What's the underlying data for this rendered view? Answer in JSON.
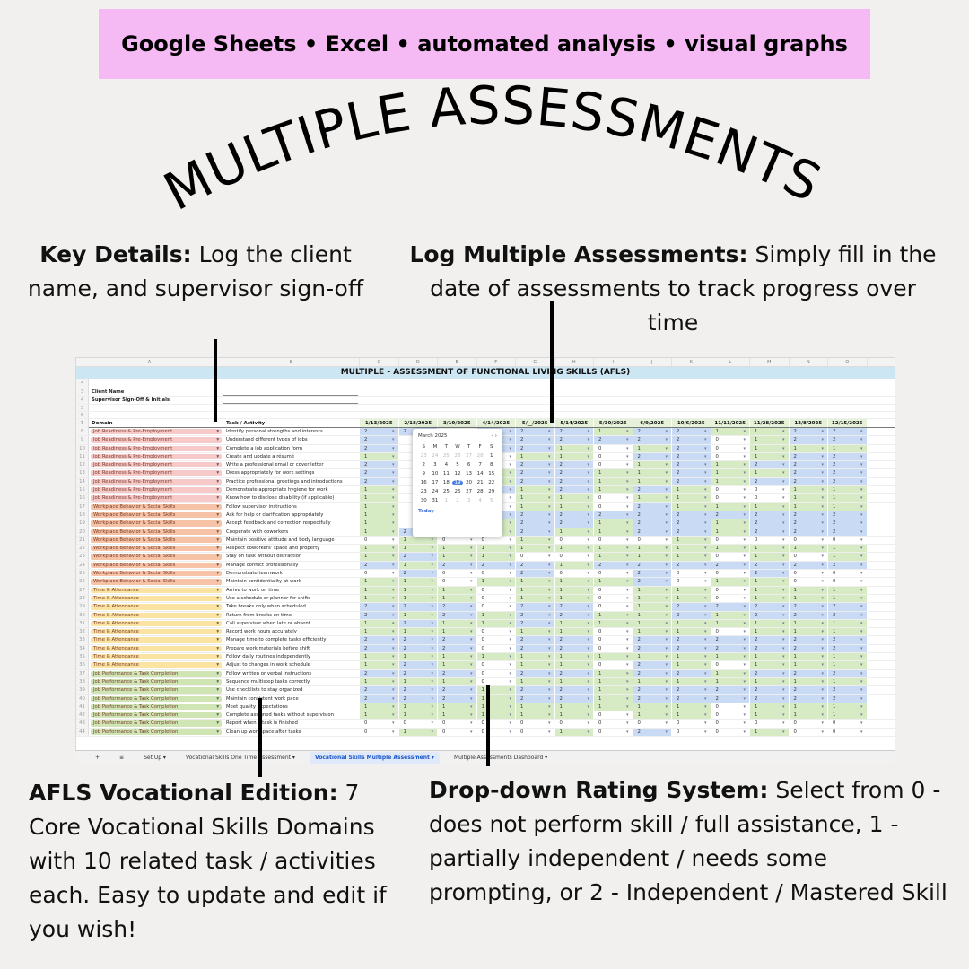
{
  "banner": "Google Sheets • Excel • automated analysis • visual graphs",
  "headline": "MULTIPLE ASSESSMENTS",
  "notes": {
    "key_details_title": "Key Details:",
    "key_details_text": " Log the client name, and supervisor sign-off",
    "log_title": "Log Multiple Assessments:",
    "log_text": " Simply fill in the date of assessments to track progress over time",
    "afls_title": "AFLS Vocational Edition:",
    "afls_text": " 7 Core Vocational Skills Domains with 10 related task / activities each. Easy to update and edit if you wish!",
    "dropdown_title": "Drop-down Rating System:",
    "dropdown_text": " Select from 0 - does not perform skill / full assistance, 1 - partially independent / needs some prompting, or 2 - Independent / Mastered Skill"
  },
  "sheet": {
    "columns": [
      "A",
      "B",
      "C",
      "D",
      "E",
      "F",
      "G",
      "H",
      "I",
      "J",
      "K",
      "L",
      "M",
      "N",
      "O"
    ],
    "title": "MULTIPLE - ASSESSMENT OF FUNCTIONAL LIVING SKILLS (AFLS)",
    "client_name_label": "Client Name",
    "signoff_label": "Supervisor Sign-Off & Initials",
    "header_domain": "Domain",
    "header_task": "Task / Activity",
    "dates": [
      "1/13/2025",
      "2/18/2025",
      "3/19/2025",
      "4/14/2025",
      "5/__/2025",
      "5/14/2025",
      "5/30/2025",
      "6/9/2025",
      "10/6/2025",
      "11/11/2025",
      "11/28/2025",
      "12/8/2025",
      "12/15/2025"
    ],
    "rows": [
      {
        "n": "8",
        "d": "Job Readiness & Pre-Employment",
        "t": "Identify personal strengths and interests",
        "v": [
          "2",
          "2",
          "",
          "2",
          "2",
          "2",
          "1",
          "2",
          "2",
          "1",
          "1",
          "2",
          "2"
        ]
      },
      {
        "n": "9",
        "d": "Job Readiness & Pre-Employment",
        "t": "Understand different types of jobs",
        "v": [
          "2",
          "",
          "",
          "2",
          "2",
          "2",
          "2",
          "2",
          "2",
          "0",
          "1",
          "2",
          "2"
        ]
      },
      {
        "n": "10",
        "d": "Job Readiness & Pre-Employment",
        "t": "Complete a job application form",
        "v": [
          "2",
          "",
          "",
          "2",
          "2",
          "1",
          "0",
          "1",
          "2",
          "0",
          "1",
          "1",
          "1"
        ]
      },
      {
        "n": "11",
        "d": "Job Readiness & Pre-Employment",
        "t": "Create and update a résumé",
        "v": [
          "1",
          "",
          "",
          "0",
          "1",
          "1",
          "0",
          "2",
          "2",
          "0",
          "1",
          "2",
          "2"
        ]
      },
      {
        "n": "12",
        "d": "Job Readiness & Pre-Employment",
        "t": "Write a professional email or cover letter",
        "v": [
          "2",
          "",
          "",
          "0",
          "2",
          "2",
          "0",
          "1",
          "2",
          "1",
          "2",
          "2",
          "2"
        ]
      },
      {
        "n": "13",
        "d": "Job Readiness & Pre-Employment",
        "t": "Dress appropriately for work settings",
        "v": [
          "2",
          "",
          "",
          "1",
          "2",
          "2",
          "1",
          "1",
          "2",
          "1",
          "1",
          "2",
          "2"
        ]
      },
      {
        "n": "14",
        "d": "Job Readiness & Pre-Employment",
        "t": "Practice professional greetings and introductions",
        "v": [
          "2",
          "",
          "",
          "1",
          "2",
          "2",
          "1",
          "1",
          "2",
          "1",
          "2",
          "2",
          "2"
        ]
      },
      {
        "n": "15",
        "d": "Job Readiness & Pre-Employment",
        "t": "Demonstrate appropriate hygiene for work",
        "v": [
          "1",
          "",
          "",
          "2",
          "1",
          "2",
          "1",
          "2",
          "1",
          "0",
          "0",
          "1",
          "1"
        ]
      },
      {
        "n": "16",
        "d": "Job Readiness & Pre-Employment",
        "t": "Know how to disclose disability (if applicable)",
        "v": [
          "1",
          "",
          "",
          "0",
          "1",
          "1",
          "0",
          "1",
          "1",
          "0",
          "0",
          "1",
          "1"
        ]
      },
      {
        "n": "17",
        "d": "Workplace Behavior & Social Skills",
        "t": "Follow supervisor instructions",
        "v": [
          "1",
          "",
          "",
          "0",
          "1",
          "1",
          "0",
          "2",
          "1",
          "1",
          "1",
          "1",
          "1"
        ]
      },
      {
        "n": "18",
        "d": "Workplace Behavior & Social Skills",
        "t": "Ask for help or clarification appropriately",
        "v": [
          "1",
          "",
          "",
          "2",
          "2",
          "2",
          "2",
          "2",
          "2",
          "2",
          "2",
          "2",
          "2"
        ]
      },
      {
        "n": "19",
        "d": "Workplace Behavior & Social Skills",
        "t": "Accept feedback and correction respectfully",
        "v": [
          "1",
          "",
          "",
          "1",
          "2",
          "2",
          "1",
          "2",
          "2",
          "1",
          "2",
          "2",
          "2"
        ]
      },
      {
        "n": "20",
        "d": "Workplace Behavior & Social Skills",
        "t": "Cooperate with coworkers",
        "v": [
          "1",
          "2",
          "1",
          "1",
          "2",
          "1",
          "1",
          "2",
          "2",
          "1",
          "2",
          "2",
          "2"
        ]
      },
      {
        "n": "21",
        "d": "Workplace Behavior & Social Skills",
        "t": "Maintain positive attitude and body language",
        "v": [
          "0",
          "1",
          "0",
          "0",
          "1",
          "0",
          "0",
          "0",
          "1",
          "0",
          "0",
          "0",
          "0"
        ]
      },
      {
        "n": "22",
        "d": "Workplace Behavior & Social Skills",
        "t": "Respect coworkers' space and property",
        "v": [
          "1",
          "1",
          "1",
          "1",
          "1",
          "1",
          "1",
          "1",
          "1",
          "1",
          "1",
          "1",
          "1"
        ]
      },
      {
        "n": "23",
        "d": "Workplace Behavior & Social Skills",
        "t": "Stay on task without distraction",
        "v": [
          "1",
          "2",
          "1",
          "1",
          "0",
          "0",
          "1",
          "1",
          "1",
          "0",
          "1",
          "0",
          "1"
        ]
      },
      {
        "n": "24",
        "d": "Workplace Behavior & Social Skills",
        "t": "Manage conflict professionally",
        "v": [
          "2",
          "1",
          "2",
          "2",
          "2",
          "1",
          "2",
          "2",
          "2",
          "2",
          "2",
          "2",
          "2"
        ]
      },
      {
        "n": "25",
        "d": "Workplace Behavior & Social Skills",
        "t": "Demonstrate teamwork",
        "v": [
          "0",
          "2",
          "0",
          "0",
          "2",
          "0",
          "0",
          "2",
          "0",
          "0",
          "2",
          "0",
          "0"
        ]
      },
      {
        "n": "26",
        "d": "Workplace Behavior & Social Skills",
        "t": "Maintain confidentiality at work",
        "v": [
          "1",
          "1",
          "0",
          "1",
          "1",
          "1",
          "1",
          "2",
          "0",
          "1",
          "1",
          "0",
          "0"
        ]
      },
      {
        "n": "27",
        "d": "Time & Attendance",
        "t": "Arrive to work on time",
        "v": [
          "1",
          "1",
          "1",
          "0",
          "1",
          "1",
          "0",
          "1",
          "1",
          "0",
          "1",
          "1",
          "1"
        ]
      },
      {
        "n": "28",
        "d": "Time & Attendance",
        "t": "Use a schedule or planner for shifts",
        "v": [
          "1",
          "1",
          "1",
          "0",
          "1",
          "1",
          "0",
          "1",
          "1",
          "0",
          "1",
          "1",
          "1"
        ]
      },
      {
        "n": "29",
        "d": "Time & Attendance",
        "t": "Take breaks only when scheduled",
        "v": [
          "2",
          "2",
          "2",
          "0",
          "2",
          "2",
          "0",
          "1",
          "2",
          "2",
          "2",
          "2",
          "2"
        ]
      },
      {
        "n": "30",
        "d": "Time & Attendance",
        "t": "Return from breaks on time",
        "v": [
          "2",
          "1",
          "2",
          "1",
          "2",
          "2",
          "1",
          "1",
          "2",
          "1",
          "2",
          "2",
          "2"
        ]
      },
      {
        "n": "31",
        "d": "Time & Attendance",
        "t": "Call supervisor when late or absent",
        "v": [
          "1",
          "2",
          "1",
          "1",
          "2",
          "1",
          "1",
          "1",
          "1",
          "1",
          "1",
          "1",
          "1"
        ]
      },
      {
        "n": "32",
        "d": "Time & Attendance",
        "t": "Record work hours accurately",
        "v": [
          "1",
          "1",
          "1",
          "0",
          "1",
          "1",
          "0",
          "1",
          "1",
          "0",
          "1",
          "1",
          "1"
        ]
      },
      {
        "n": "33",
        "d": "Time & Attendance",
        "t": "Manage time to complete tasks efficiently",
        "v": [
          "2",
          "2",
          "2",
          "0",
          "2",
          "2",
          "0",
          "2",
          "2",
          "2",
          "2",
          "2",
          "2"
        ]
      },
      {
        "n": "34",
        "d": "Time & Attendance",
        "t": "Prepare work materials before shift",
        "v": [
          "2",
          "2",
          "2",
          "0",
          "2",
          "2",
          "0",
          "2",
          "2",
          "2",
          "2",
          "2",
          "2"
        ]
      },
      {
        "n": "35",
        "d": "Time & Attendance",
        "t": "Follow daily routines independently",
        "v": [
          "1",
          "1",
          "1",
          "1",
          "1",
          "1",
          "1",
          "1",
          "1",
          "1",
          "1",
          "1",
          "1"
        ]
      },
      {
        "n": "36",
        "d": "Time & Attendance",
        "t": "Adjust to changes in work schedule",
        "v": [
          "1",
          "2",
          "1",
          "0",
          "1",
          "1",
          "0",
          "2",
          "1",
          "0",
          "1",
          "1",
          "1"
        ]
      },
      {
        "n": "37",
        "d": "Job Performance & Task Completion",
        "t": "Follow written or verbal instructions",
        "v": [
          "2",
          "2",
          "2",
          "0",
          "2",
          "2",
          "1",
          "2",
          "2",
          "1",
          "2",
          "2",
          "2"
        ]
      },
      {
        "n": "38",
        "d": "Job Performance & Task Completion",
        "t": "Sequence multistep tasks correctly",
        "v": [
          "1",
          "1",
          "1",
          "0",
          "1",
          "1",
          "1",
          "1",
          "1",
          "1",
          "1",
          "1",
          "1"
        ]
      },
      {
        "n": "39",
        "d": "Job Performance & Task Completion",
        "t": "Use checklists to stay organized",
        "v": [
          "2",
          "2",
          "2",
          "1",
          "2",
          "2",
          "1",
          "2",
          "2",
          "2",
          "2",
          "2",
          "2"
        ]
      },
      {
        "n": "40",
        "d": "Job Performance & Task Completion",
        "t": "Maintain consistent work pace",
        "v": [
          "2",
          "2",
          "2",
          "1",
          "2",
          "2",
          "1",
          "2",
          "2",
          "2",
          "2",
          "2",
          "2"
        ]
      },
      {
        "n": "41",
        "d": "Job Performance & Task Completion",
        "t": "Meet quality expectations",
        "v": [
          "1",
          "1",
          "1",
          "1",
          "1",
          "1",
          "1",
          "1",
          "1",
          "0",
          "1",
          "1",
          "1"
        ]
      },
      {
        "n": "42",
        "d": "Job Performance & Task Completion",
        "t": "Complete assigned tasks without supervision",
        "v": [
          "1",
          "1",
          "1",
          "1",
          "1",
          "1",
          "0",
          "1",
          "1",
          "0",
          "1",
          "1",
          "1"
        ]
      },
      {
        "n": "43",
        "d": "Job Performance & Task Completion",
        "t": "Report when a task is finished",
        "v": [
          "0",
          "0",
          "0",
          "0",
          "0",
          "0",
          "0",
          "0",
          "0",
          "0",
          "0",
          "0",
          "0"
        ]
      },
      {
        "n": "44",
        "d": "Job Performance & Task Completion",
        "t": "Clean up workspace after tasks",
        "v": [
          "0",
          "1",
          "0",
          "0",
          "0",
          "1",
          "0",
          "2",
          "0",
          "0",
          "1",
          "0",
          "0"
        ]
      }
    ],
    "tabs": [
      "+",
      "≡",
      "Set Up ▾",
      "Vocational Skills One Time Assessment ▾",
      "Vocational Skills Multiple Assessment ▾",
      "Multiple Assessments Dashboard ▾"
    ],
    "calendar": {
      "month": "March 2025",
      "nav": "‹  ›",
      "weekdays": [
        "S",
        "M",
        "T",
        "W",
        "T",
        "F",
        "S"
      ],
      "days": [
        "23",
        "24",
        "25",
        "26",
        "27",
        "28",
        "1",
        "2",
        "3",
        "4",
        "5",
        "6",
        "7",
        "8",
        "9",
        "10",
        "11",
        "12",
        "13",
        "14",
        "15",
        "16",
        "17",
        "18",
        "19",
        "20",
        "21",
        "22",
        "23",
        "24",
        "25",
        "26",
        "27",
        "28",
        "29",
        "30",
        "31",
        "1",
        "2",
        "3",
        "4",
        "5"
      ],
      "selected": "19",
      "today_label": "Today"
    }
  },
  "colors": {
    "banner": "#f5b9f3",
    "job_readiness": "#f7caca",
    "workplace": "#f6c3a6",
    "time": "#fbe3a1",
    "performance": "#cfe6b4",
    "cell_blue": "#c9daf5",
    "cell_green": "#d6eac4"
  }
}
